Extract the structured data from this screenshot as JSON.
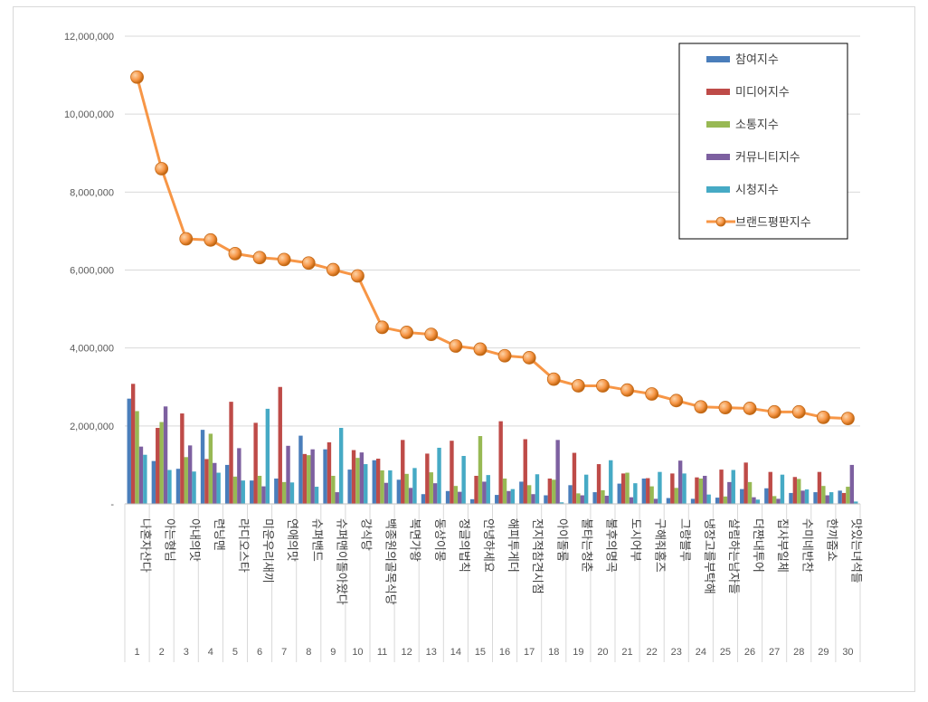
{
  "chart_data": {
    "type": "bar",
    "overlay_line_series": "브랜드평판지수",
    "categories": [
      "나혼자산다",
      "아는형님",
      "아내의맛",
      "런닝맨",
      "라디오스타",
      "미운우리새끼",
      "연애의맛",
      "슈퍼밴드",
      "슈퍼맨이돌아왔다",
      "강식당",
      "백종원의골목식당",
      "복면가왕",
      "동상이몽",
      "정글의법칙",
      "안녕하세요",
      "해피투게더",
      "전지적참견시점",
      "아이돌룸",
      "불타는청춘",
      "불후의명곡",
      "도시어부",
      "구해줘홈즈",
      "그랑블루",
      "냉장고를부탁해",
      "살림하는남자들",
      "더짠내투어",
      "집사부일체",
      "수미네반찬",
      "한끼줍쇼",
      "맛있는녀석들"
    ],
    "ranks": [
      "1",
      "2",
      "3",
      "4",
      "5",
      "6",
      "7",
      "8",
      "9",
      "10",
      "11",
      "12",
      "13",
      "14",
      "15",
      "16",
      "17",
      "18",
      "19",
      "20",
      "21",
      "22",
      "23",
      "24",
      "25",
      "26",
      "27",
      "28",
      "29",
      "30"
    ],
    "series": [
      {
        "name": "참여지수",
        "color": "#4a7ebb",
        "values": [
          2700000,
          1100000,
          900000,
          1900000,
          1000000,
          600000,
          650000,
          1750000,
          1400000,
          880000,
          1120000,
          620000,
          250000,
          330000,
          120000,
          230000,
          570000,
          220000,
          480000,
          300000,
          520000,
          650000,
          150000,
          130000,
          160000,
          380000,
          400000,
          280000,
          300000,
          340000
        ]
      },
      {
        "name": "미디어지수",
        "color": "#be4b48",
        "values": [
          3080000,
          1950000,
          2320000,
          1150000,
          2620000,
          2080000,
          3000000,
          1280000,
          1580000,
          1380000,
          1160000,
          1640000,
          1290000,
          1620000,
          720000,
          2120000,
          1660000,
          650000,
          1310000,
          1020000,
          780000,
          660000,
          780000,
          680000,
          880000,
          1060000,
          820000,
          690000,
          820000,
          280000
        ]
      },
      {
        "name": "소통지수",
        "color": "#98b954",
        "values": [
          2380000,
          2100000,
          1200000,
          1800000,
          700000,
          720000,
          560000,
          1250000,
          720000,
          1180000,
          860000,
          770000,
          810000,
          460000,
          1740000,
          650000,
          480000,
          620000,
          270000,
          350000,
          800000,
          450000,
          410000,
          650000,
          190000,
          560000,
          200000,
          640000,
          460000,
          440000
        ]
      },
      {
        "name": "커뮤니티지수",
        "color": "#7d60a0",
        "values": [
          1470000,
          2500000,
          1500000,
          1050000,
          1430000,
          450000,
          1490000,
          1400000,
          300000,
          1320000,
          540000,
          410000,
          530000,
          310000,
          570000,
          330000,
          250000,
          1640000,
          220000,
          210000,
          170000,
          130000,
          1110000,
          720000,
          560000,
          170000,
          130000,
          340000,
          220000,
          1000000
        ]
      },
      {
        "name": "시청지수",
        "color": "#46aac5",
        "values": [
          1260000,
          870000,
          830000,
          800000,
          600000,
          2440000,
          550000,
          440000,
          1950000,
          1020000,
          860000,
          920000,
          1440000,
          1230000,
          740000,
          380000,
          760000,
          40000,
          750000,
          1120000,
          530000,
          820000,
          780000,
          240000,
          870000,
          110000,
          750000,
          370000,
          300000,
          60000
        ]
      },
      {
        "name": "브랜드평판지수",
        "color": "#f79646",
        "values": [
          10950000,
          8600000,
          6800000,
          6770000,
          6420000,
          6320000,
          6270000,
          6180000,
          6010000,
          5850000,
          4530000,
          4400000,
          4350000,
          4050000,
          3970000,
          3800000,
          3750000,
          3200000,
          3030000,
          3030000,
          2920000,
          2820000,
          2650000,
          2490000,
          2470000,
          2450000,
          2360000,
          2360000,
          2220000,
          2190000
        ]
      }
    ],
    "ylim": [
      0,
      12000000
    ],
    "y_ticks": [
      "-",
      "2,000,000",
      "4,000,000",
      "6,000,000",
      "8,000,000",
      "10,000,000",
      "12,000,000"
    ],
    "grid": "horizontal",
    "legend_placement": "top-right"
  }
}
